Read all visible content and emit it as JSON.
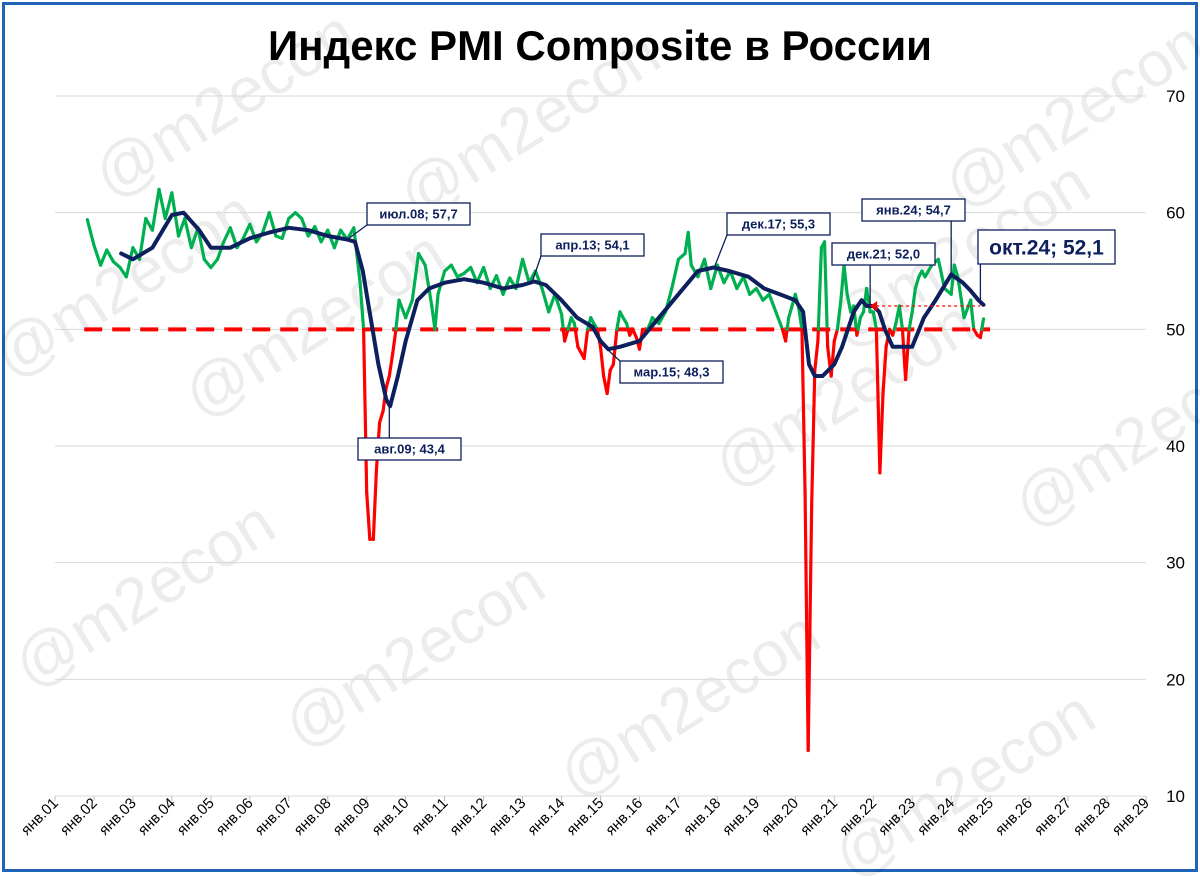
{
  "chart_data": {
    "type": "line",
    "title": "Индекс PMI Composite в России",
    "watermark": "@m2econ",
    "y_axis": {
      "position": "right",
      "ylim": [
        10,
        70
      ],
      "ticks": [
        10,
        20,
        30,
        40,
        50,
        60,
        70
      ]
    },
    "x_axis": {
      "ticks": [
        "янв.01",
        "янв.02",
        "янв.03",
        "янв.04",
        "янв.05",
        "янв.06",
        "янв.07",
        "янв.08",
        "янв.09",
        "янв.10",
        "янв.11",
        "янв.12",
        "янв.13",
        "янв.14",
        "янв.15",
        "янв.16",
        "янв.17",
        "янв.18",
        "янв.19",
        "янв.20",
        "янв.21",
        "янв.22",
        "янв.23",
        "янв.24",
        "янв.25",
        "янв.26",
        "янв.27",
        "янв.28",
        "янв.29"
      ]
    },
    "grid": true,
    "reference_line": {
      "value": 50,
      "style": "dashed",
      "color": "#ff0000"
    },
    "colors": {
      "above_50": "#00b050",
      "below_50": "#ff0000",
      "trend": "#0d1f5c",
      "grid": "#d9d9d9",
      "frame": "#1f64b8"
    },
    "series": [
      {
        "role": "monthly_index",
        "points": [
          [
            2001.83,
            59.4
          ],
          [
            2002.0,
            57.2
          ],
          [
            2002.17,
            55.5
          ],
          [
            2002.33,
            56.8
          ],
          [
            2002.5,
            55.8
          ],
          [
            2002.67,
            55.3
          ],
          [
            2002.83,
            54.5
          ],
          [
            2003.0,
            57.0
          ],
          [
            2003.17,
            56.0
          ],
          [
            2003.33,
            59.5
          ],
          [
            2003.5,
            58.5
          ],
          [
            2003.67,
            62.0
          ],
          [
            2003.83,
            59.5
          ],
          [
            2004.0,
            61.7
          ],
          [
            2004.17,
            58.0
          ],
          [
            2004.33,
            59.5
          ],
          [
            2004.5,
            57.0
          ],
          [
            2004.67,
            58.7
          ],
          [
            2004.83,
            56.0
          ],
          [
            2005.0,
            55.3
          ],
          [
            2005.17,
            56.0
          ],
          [
            2005.33,
            57.5
          ],
          [
            2005.5,
            58.7
          ],
          [
            2005.67,
            57.0
          ],
          [
            2005.83,
            57.8
          ],
          [
            2006.0,
            59.0
          ],
          [
            2006.17,
            57.5
          ],
          [
            2006.33,
            58.3
          ],
          [
            2006.5,
            60.0
          ],
          [
            2006.67,
            58.0
          ],
          [
            2006.83,
            57.8
          ],
          [
            2007.0,
            59.5
          ],
          [
            2007.17,
            60.0
          ],
          [
            2007.33,
            59.5
          ],
          [
            2007.5,
            58.0
          ],
          [
            2007.67,
            58.8
          ],
          [
            2007.83,
            57.5
          ],
          [
            2008.0,
            58.5
          ],
          [
            2008.17,
            57.0
          ],
          [
            2008.33,
            58.5
          ],
          [
            2008.5,
            57.7
          ],
          [
            2008.67,
            58.7
          ],
          [
            2008.83,
            54.0
          ],
          [
            2008.92,
            50.0
          ],
          [
            2009.0,
            36.0
          ],
          [
            2009.08,
            32.0
          ],
          [
            2009.17,
            32.0
          ],
          [
            2009.25,
            38.0
          ],
          [
            2009.33,
            42.0
          ],
          [
            2009.42,
            43.0
          ],
          [
            2009.5,
            45.0
          ],
          [
            2009.58,
            46.0
          ],
          [
            2009.67,
            48.0
          ],
          [
            2009.75,
            50.0
          ],
          [
            2009.83,
            52.5
          ],
          [
            2010.0,
            51.0
          ],
          [
            2010.17,
            52.5
          ],
          [
            2010.33,
            56.5
          ],
          [
            2010.5,
            55.5
          ],
          [
            2010.67,
            52.0
          ],
          [
            2010.75,
            50.0
          ],
          [
            2010.83,
            53.0
          ],
          [
            2011.0,
            55.0
          ],
          [
            2011.17,
            55.5
          ],
          [
            2011.33,
            54.5
          ],
          [
            2011.5,
            54.8
          ],
          [
            2011.67,
            55.3
          ],
          [
            2011.83,
            54.0
          ],
          [
            2012.0,
            55.3
          ],
          [
            2012.17,
            53.5
          ],
          [
            2012.33,
            54.6
          ],
          [
            2012.5,
            53.0
          ],
          [
            2012.67,
            54.4
          ],
          [
            2012.83,
            53.5
          ],
          [
            2013.0,
            56.0
          ],
          [
            2013.17,
            54.0
          ],
          [
            2013.33,
            55.0
          ],
          [
            2013.5,
            53.5
          ],
          [
            2013.67,
            51.5
          ],
          [
            2013.83,
            53.0
          ],
          [
            2014.0,
            51.3
          ],
          [
            2014.08,
            49.0
          ],
          [
            2014.25,
            51.0
          ],
          [
            2014.33,
            50.5
          ],
          [
            2014.42,
            48.5
          ],
          [
            2014.5,
            48.0
          ],
          [
            2014.58,
            47.5
          ],
          [
            2014.67,
            50.0
          ],
          [
            2014.75,
            51.0
          ],
          [
            2014.83,
            50.5
          ],
          [
            2014.92,
            50.0
          ],
          [
            2015.0,
            48.5
          ],
          [
            2015.08,
            46.0
          ],
          [
            2015.17,
            44.5
          ],
          [
            2015.25,
            46.5
          ],
          [
            2015.33,
            47.0
          ],
          [
            2015.42,
            50.0
          ],
          [
            2015.5,
            51.5
          ],
          [
            2015.58,
            51.0
          ],
          [
            2015.67,
            50.5
          ],
          [
            2015.75,
            49.5
          ],
          [
            2015.83,
            50.0
          ],
          [
            2015.92,
            49.3
          ],
          [
            2016.0,
            48.3
          ],
          [
            2016.08,
            50.0
          ],
          [
            2016.17,
            49.8
          ],
          [
            2016.25,
            50.3
          ],
          [
            2016.33,
            51.0
          ],
          [
            2016.5,
            50.5
          ],
          [
            2016.67,
            51.5
          ],
          [
            2016.83,
            53.5
          ],
          [
            2017.0,
            56.0
          ],
          [
            2017.17,
            56.5
          ],
          [
            2017.25,
            58.3
          ],
          [
            2017.33,
            55.5
          ],
          [
            2017.5,
            54.5
          ],
          [
            2017.67,
            56.0
          ],
          [
            2017.83,
            53.5
          ],
          [
            2018.0,
            55.5
          ],
          [
            2018.17,
            54.0
          ],
          [
            2018.33,
            55.0
          ],
          [
            2018.5,
            53.5
          ],
          [
            2018.67,
            54.5
          ],
          [
            2018.83,
            53.0
          ],
          [
            2019.0,
            53.5
          ],
          [
            2019.17,
            52.5
          ],
          [
            2019.33,
            53.0
          ],
          [
            2019.5,
            51.5
          ],
          [
            2019.67,
            50.0
          ],
          [
            2019.75,
            49.0
          ],
          [
            2019.83,
            51.0
          ],
          [
            2020.0,
            53.0
          ],
          [
            2020.08,
            52.0
          ],
          [
            2020.17,
            50.0
          ],
          [
            2020.25,
            36.0
          ],
          [
            2020.33,
            13.9
          ],
          [
            2020.42,
            35.0
          ],
          [
            2020.5,
            46.5
          ],
          [
            2020.58,
            49.0
          ],
          [
            2020.67,
            57.0
          ],
          [
            2020.75,
            57.5
          ],
          [
            2020.83,
            48.5
          ],
          [
            2020.92,
            46.0
          ],
          [
            2021.0,
            49.0
          ],
          [
            2021.08,
            50.0
          ],
          [
            2021.17,
            52.5
          ],
          [
            2021.25,
            55.5
          ],
          [
            2021.33,
            53.0
          ],
          [
            2021.42,
            51.5
          ],
          [
            2021.5,
            52.0
          ],
          [
            2021.58,
            49.5
          ],
          [
            2021.67,
            51.0
          ],
          [
            2021.75,
            51.5
          ],
          [
            2021.83,
            53.5
          ],
          [
            2021.92,
            51.5
          ],
          [
            2022.0,
            51.5
          ],
          [
            2022.08,
            50.0
          ],
          [
            2022.17,
            37.7
          ],
          [
            2022.25,
            44.5
          ],
          [
            2022.33,
            48.5
          ],
          [
            2022.42,
            50.0
          ],
          [
            2022.5,
            49.5
          ],
          [
            2022.58,
            50.5
          ],
          [
            2022.67,
            52.0
          ],
          [
            2022.75,
            50.0
          ],
          [
            2022.83,
            45.7
          ],
          [
            2022.92,
            50.0
          ],
          [
            2023.0,
            51.5
          ],
          [
            2023.08,
            53.5
          ],
          [
            2023.17,
            54.5
          ],
          [
            2023.25,
            55.0
          ],
          [
            2023.33,
            54.5
          ],
          [
            2023.5,
            55.5
          ],
          [
            2023.67,
            56.0
          ],
          [
            2023.83,
            53.5
          ],
          [
            2024.0,
            53.0
          ],
          [
            2024.08,
            55.5
          ],
          [
            2024.17,
            54.5
          ],
          [
            2024.33,
            51.0
          ],
          [
            2024.5,
            52.5
          ],
          [
            2024.58,
            50.0
          ],
          [
            2024.67,
            49.5
          ],
          [
            2024.75,
            49.3
          ],
          [
            2024.83,
            50.9
          ]
        ]
      },
      {
        "role": "trend",
        "points": [
          [
            2002.7,
            56.5
          ],
          [
            2003.0,
            56.0
          ],
          [
            2003.5,
            57.0
          ],
          [
            2004.0,
            59.8
          ],
          [
            2004.3,
            60.0
          ],
          [
            2004.7,
            58.5
          ],
          [
            2005.0,
            57.0
          ],
          [
            2005.5,
            57.0
          ],
          [
            2006.0,
            57.8
          ],
          [
            2006.5,
            58.3
          ],
          [
            2007.0,
            58.7
          ],
          [
            2007.5,
            58.5
          ],
          [
            2008.0,
            58.0
          ],
          [
            2008.5,
            57.7
          ],
          [
            2008.7,
            57.5
          ],
          [
            2008.9,
            55.0
          ],
          [
            2009.1,
            51.0
          ],
          [
            2009.3,
            47.0
          ],
          [
            2009.5,
            44.0
          ],
          [
            2009.6,
            43.4
          ],
          [
            2009.8,
            46.0
          ],
          [
            2010.0,
            49.0
          ],
          [
            2010.3,
            52.5
          ],
          [
            2010.6,
            53.5
          ],
          [
            2011.0,
            54.0
          ],
          [
            2011.5,
            54.3
          ],
          [
            2012.0,
            54.0
          ],
          [
            2012.5,
            53.5
          ],
          [
            2013.0,
            53.8
          ],
          [
            2013.3,
            54.1
          ],
          [
            2013.6,
            53.8
          ],
          [
            2014.0,
            52.5
          ],
          [
            2014.4,
            51.0
          ],
          [
            2014.8,
            50.2
          ],
          [
            2015.0,
            49.0
          ],
          [
            2015.2,
            48.3
          ],
          [
            2015.5,
            48.5
          ],
          [
            2016.0,
            49.0
          ],
          [
            2016.5,
            51.0
          ],
          [
            2017.0,
            53.0
          ],
          [
            2017.5,
            55.0
          ],
          [
            2017.9,
            55.3
          ],
          [
            2018.3,
            55.0
          ],
          [
            2018.8,
            54.5
          ],
          [
            2019.2,
            53.5
          ],
          [
            2019.6,
            53.0
          ],
          [
            2020.0,
            52.5
          ],
          [
            2020.2,
            51.5
          ],
          [
            2020.35,
            47.0
          ],
          [
            2020.5,
            46.0
          ],
          [
            2020.7,
            46.0
          ],
          [
            2020.85,
            46.5
          ],
          [
            2021.0,
            47.0
          ],
          [
            2021.2,
            48.5
          ],
          [
            2021.5,
            51.5
          ],
          [
            2021.7,
            52.5
          ],
          [
            2021.83,
            52.0
          ],
          [
            2022.0,
            52.0
          ],
          [
            2022.15,
            51.5
          ],
          [
            2022.3,
            50.0
          ],
          [
            2022.5,
            48.5
          ],
          [
            2022.8,
            48.5
          ],
          [
            2023.0,
            48.5
          ],
          [
            2023.3,
            51.0
          ],
          [
            2023.6,
            52.5
          ],
          [
            2024.0,
            54.7
          ],
          [
            2024.3,
            54.0
          ],
          [
            2024.5,
            53.3
          ],
          [
            2024.7,
            52.5
          ],
          [
            2024.83,
            52.1
          ]
        ]
      }
    ],
    "annotations": [
      {
        "text": "июл.08; 57,7",
        "x": 2008.5,
        "y": 57.7
      },
      {
        "text": "авг.09; 43,4",
        "x": 2009.58,
        "y": 43.4
      },
      {
        "text": "апр.13; 54,1",
        "x": 2013.25,
        "y": 54.1
      },
      {
        "text": "мар.15; 48,3",
        "x": 2015.17,
        "y": 48.3
      },
      {
        "text": "дек.17; 55,3",
        "x": 2017.92,
        "y": 55.3
      },
      {
        "text": "дек.21; 52,0",
        "x": 2021.92,
        "y": 52.0
      },
      {
        "text": "янв.24; 54,7",
        "x": 2024.0,
        "y": 54.7
      },
      {
        "text": "окт.24; 52,1",
        "x": 2024.75,
        "y": 52.1
      }
    ]
  }
}
